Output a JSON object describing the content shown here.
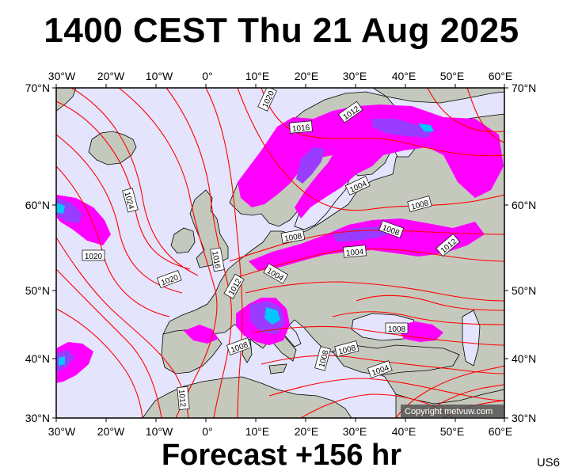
{
  "title": "1400 CEST Thu 21 Aug 2025",
  "footer": "Forecast +156 hr",
  "region_code": "US6",
  "copyright": "Copyright metvuw.com",
  "axes": {
    "lon_labels": [
      "30°W",
      "20°W",
      "10°W",
      "0°",
      "10°E",
      "20°E",
      "30°E",
      "40°E",
      "50°E",
      "60°E"
    ],
    "lat_labels": [
      "70°N",
      "60°N",
      "50°N",
      "40°N",
      "30°N"
    ],
    "lon_range": [
      -30,
      60
    ],
    "lat_range": [
      30,
      70
    ]
  },
  "isobar_labels": [
    "1020",
    "1016",
    "1012",
    "1024",
    "1020",
    "1020",
    "1016",
    "1012",
    "1008",
    "1004",
    "1004",
    "1008",
    "1008",
    "1012",
    "1004",
    "1008",
    "1008",
    "1008",
    "1004",
    "1012",
    "1008"
  ],
  "colors": {
    "sea": "#e4e4fc",
    "land": "#c7cbbf",
    "isobar": "#ff0000",
    "precip_light": "#ff00ff",
    "precip_mid": "#9a3cff",
    "precip_heavy": "#00c8ff"
  }
}
